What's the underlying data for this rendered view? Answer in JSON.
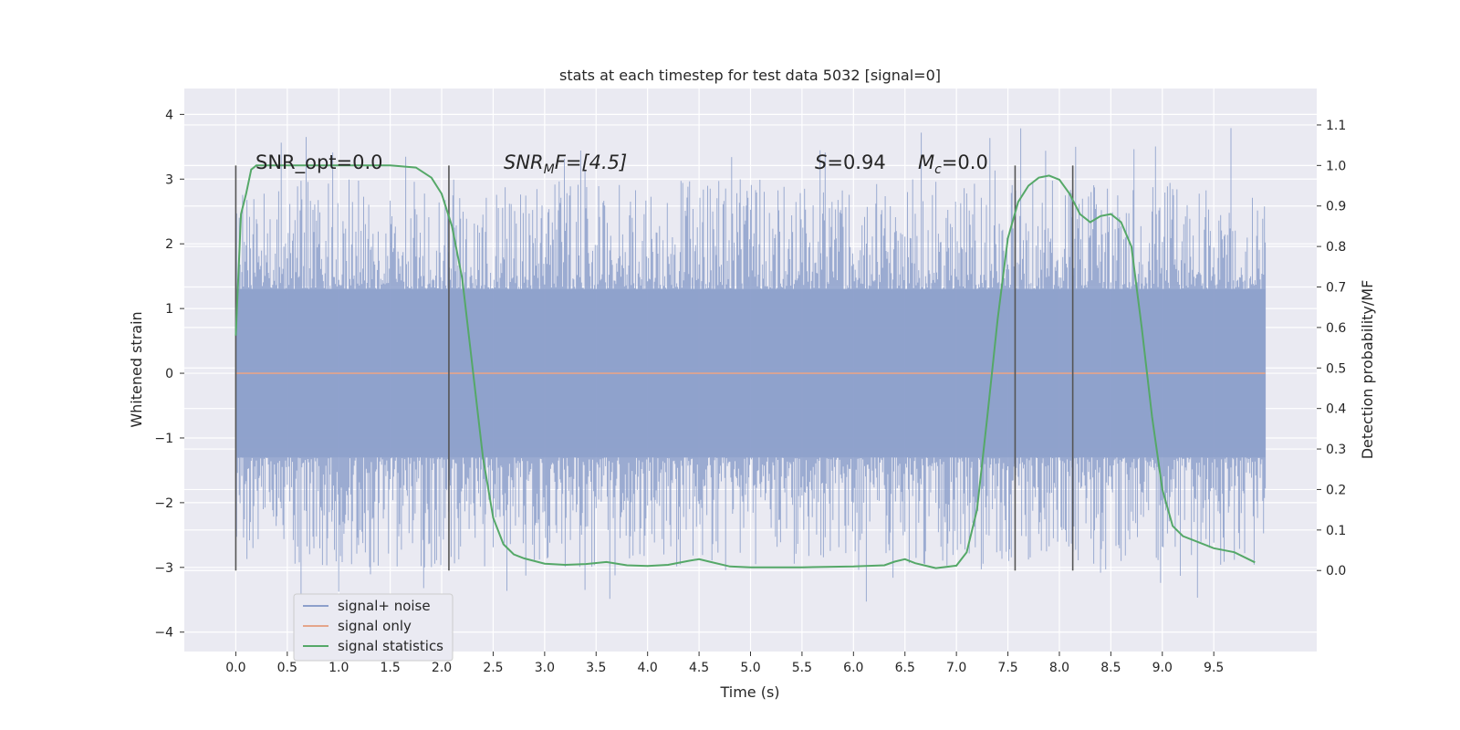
{
  "chart_data": {
    "type": "line",
    "title": "stats at each timestep for test data 5032 [signal=0]",
    "xlabel": "Time (s)",
    "ylabel": "Whitened strain",
    "y2label": "Detection probability/MF",
    "xlim": [
      -0.5,
      10.5
    ],
    "ylim": [
      -4.3,
      4.4
    ],
    "y2lim": [
      -0.2,
      1.19
    ],
    "x_ticks": [
      "0.0",
      "0.5",
      "1.0",
      "1.5",
      "2.0",
      "2.5",
      "3.0",
      "3.5",
      "4.0",
      "4.5",
      "5.0",
      "5.5",
      "6.0",
      "6.5",
      "7.0",
      "7.5",
      "8.0",
      "8.5",
      "9.0",
      "9.5"
    ],
    "y_ticks": [
      "4",
      "3",
      "2",
      "1",
      "0",
      "−1",
      "−2",
      "−3",
      "−4"
    ],
    "y2_ticks": [
      "1.1",
      "1.0",
      "0.9",
      "0.8",
      "0.7",
      "0.6",
      "0.5",
      "0.4",
      "0.3",
      "0.2",
      "0.1",
      "0.0"
    ],
    "grid": true,
    "legend_position": "lower-left",
    "series": [
      {
        "name": "signal+ noise",
        "color": "#8da0cb",
        "axis": "left",
        "description_range": [
          -3.8,
          4.05
        ],
        "x_range": [
          0.0,
          10.0
        ]
      },
      {
        "name": "signal only",
        "color": "#e5a58a",
        "axis": "left",
        "x": [
          0.0,
          10.0
        ],
        "y": [
          0.0,
          0.0
        ]
      },
      {
        "name": "signal statistics",
        "color": "#55a868",
        "axis": "right",
        "x": [
          0.0,
          0.05,
          0.1,
          0.15,
          0.2,
          0.3,
          0.5,
          1.0,
          1.5,
          1.75,
          1.9,
          2.0,
          2.1,
          2.2,
          2.3,
          2.4,
          2.5,
          2.6,
          2.7,
          2.8,
          3.0,
          3.2,
          3.4,
          3.6,
          3.8,
          4.0,
          4.2,
          4.4,
          4.5,
          4.6,
          4.8,
          5.0,
          5.5,
          6.0,
          6.3,
          6.4,
          6.5,
          6.6,
          6.8,
          7.0,
          7.1,
          7.2,
          7.3,
          7.4,
          7.5,
          7.6,
          7.7,
          7.8,
          7.9,
          8.0,
          8.1,
          8.2,
          8.3,
          8.4,
          8.5,
          8.6,
          8.7,
          8.8,
          8.9,
          9.0,
          9.1,
          9.2,
          9.3,
          9.5,
          9.7,
          9.9
        ],
        "y": [
          0.58,
          0.88,
          0.93,
          0.99,
          1.0,
          1.0,
          1.0,
          1.0,
          1.0,
          0.995,
          0.97,
          0.93,
          0.85,
          0.72,
          0.5,
          0.28,
          0.13,
          0.065,
          0.04,
          0.03,
          0.017,
          0.014,
          0.016,
          0.021,
          0.013,
          0.011,
          0.014,
          0.024,
          0.028,
          0.022,
          0.01,
          0.008,
          0.008,
          0.01,
          0.013,
          0.022,
          0.028,
          0.018,
          0.006,
          0.012,
          0.045,
          0.15,
          0.38,
          0.62,
          0.82,
          0.91,
          0.95,
          0.97,
          0.975,
          0.965,
          0.93,
          0.88,
          0.86,
          0.875,
          0.88,
          0.86,
          0.8,
          0.6,
          0.38,
          0.2,
          0.11,
          0.085,
          0.075,
          0.055,
          0.045,
          0.02
        ]
      }
    ],
    "vlines": [
      0.0,
      2.07,
      7.57,
      8.13
    ],
    "annotations": {
      "snr_opt": "SNR_opt=0.0",
      "snr_mf_label": "SNR",
      "snr_mf_sub": "M",
      "snr_mf_rest": "F=[4.5]",
      "s_label": "S",
      "s_value": "=0.94",
      "mc_label": "M",
      "mc_sub": "c",
      "mc_value": "=0.0"
    }
  }
}
